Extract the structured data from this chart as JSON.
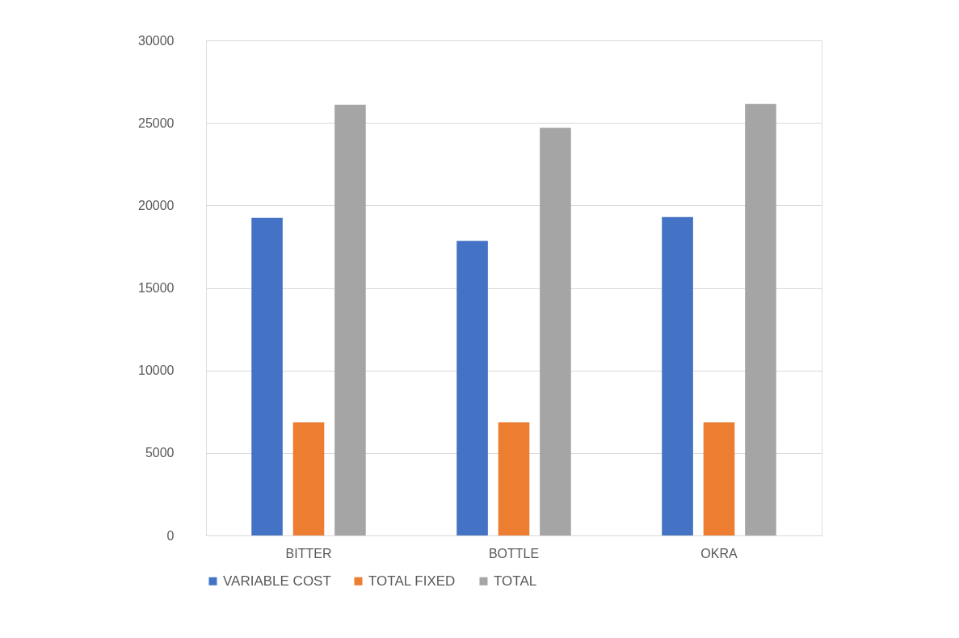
{
  "chart_data": {
    "type": "bar",
    "categories": [
      "BITTER",
      "BOTTLE",
      "OKRA"
    ],
    "series": [
      {
        "name": "VARIABLE COST",
        "color": "#4472c4",
        "values": [
          19250,
          17850,
          19300
        ]
      },
      {
        "name": "TOTAL FIXED",
        "color": "#ed7d31",
        "values": [
          6850,
          6850,
          6850
        ]
      },
      {
        "name": "TOTAL",
        "color": "#a5a5a5",
        "values": [
          26100,
          24700,
          26150
        ]
      }
    ],
    "ylim": [
      0,
      30000
    ],
    "yticks": [
      0,
      5000,
      10000,
      15000,
      20000,
      25000,
      30000
    ],
    "grid": "y",
    "legend": "bottom"
  }
}
